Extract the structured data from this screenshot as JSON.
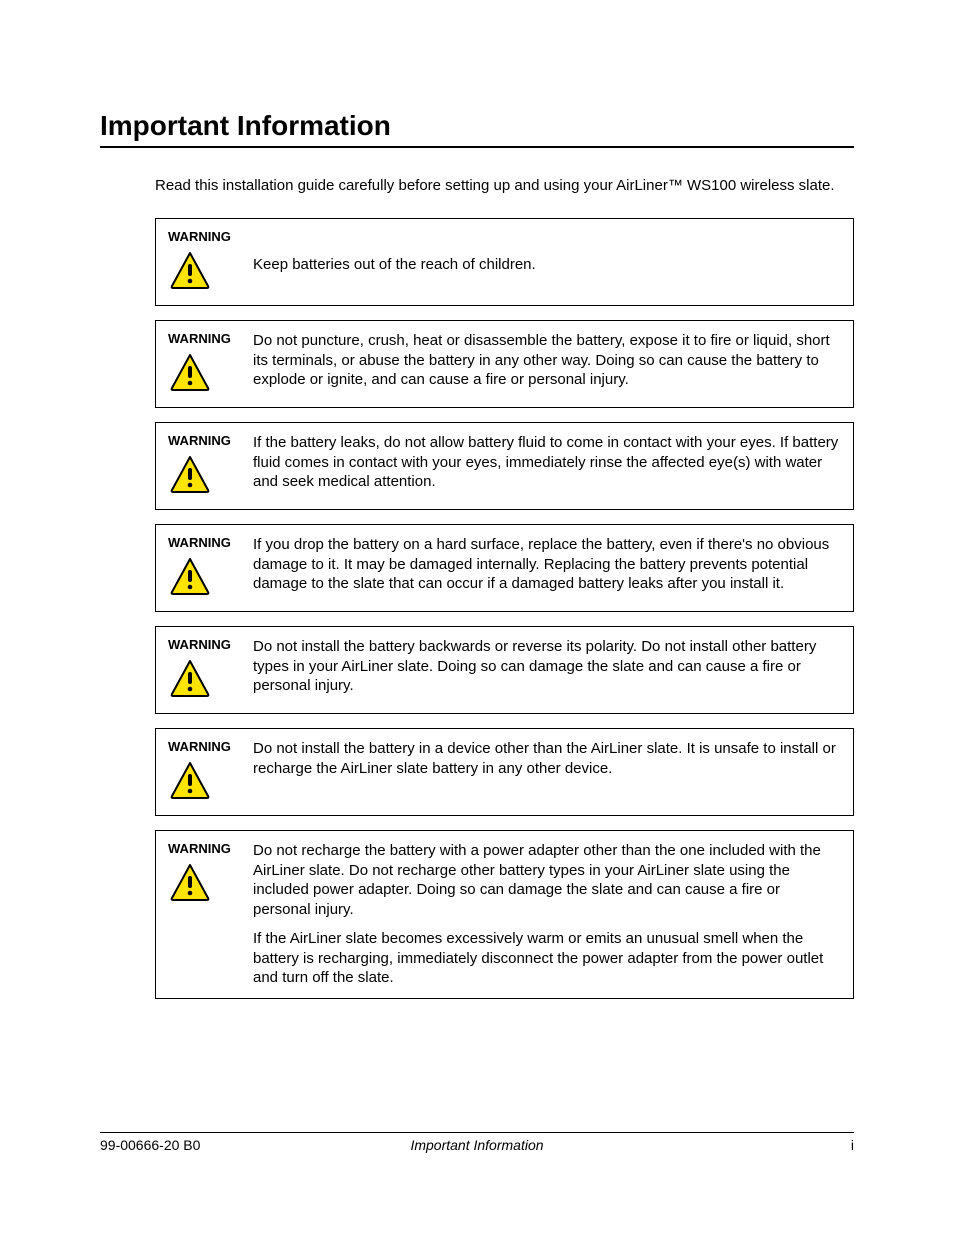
{
  "page": {
    "title": "Important Information",
    "intro": "Read this installation guide carefully before setting up and using your AirLiner™ WS100 wireless slate.",
    "icon": {
      "fill": "#ffe400",
      "stroke": "#000000",
      "width": 44,
      "height": 40
    },
    "warnings": [
      {
        "label": "WARNING",
        "single_line": true,
        "paragraphs": [
          "Keep batteries out of the reach of children."
        ]
      },
      {
        "label": "WARNING",
        "single_line": false,
        "paragraphs": [
          "Do not puncture, crush, heat or disassemble the battery, expose it to fire or liquid, short its terminals, or abuse the battery in any other way. Doing so can cause the battery to explode or ignite, and can cause a fire or personal injury."
        ]
      },
      {
        "label": "WARNING",
        "single_line": false,
        "paragraphs": [
          "If the battery leaks, do not allow battery fluid to come in contact with your eyes. If battery fluid comes in contact with your eyes, immediately rinse the affected eye(s) with water and seek medical attention."
        ]
      },
      {
        "label": "WARNING",
        "single_line": false,
        "paragraphs": [
          "If you drop the battery on a hard surface, replace the battery, even if there's no obvious damage to it. It may be damaged internally. Replacing the battery prevents potential damage to the slate that can occur if a damaged battery leaks after you install it."
        ]
      },
      {
        "label": "WARNING",
        "single_line": false,
        "paragraphs": [
          "Do not install the battery backwards or reverse its polarity. Do not install other battery types in your AirLiner slate. Doing so can damage the slate and can cause a fire or personal injury."
        ]
      },
      {
        "label": "WARNING",
        "single_line": false,
        "paragraphs": [
          "Do not install the battery in a device other than the AirLiner slate. It is unsafe to install or recharge the AirLiner slate battery in any other device."
        ]
      },
      {
        "label": "WARNING",
        "single_line": false,
        "paragraphs": [
          "Do not recharge the battery with a power adapter other than the one included with the AirLiner slate. Do not recharge other battery types in your AirLiner slate using the included power adapter. Doing so can damage the slate and can cause a fire or personal injury.",
          "If the AirLiner slate becomes excessively warm or emits an unusual smell when the battery is recharging, immediately disconnect the power adapter from the power outlet and turn off the slate."
        ]
      }
    ],
    "footer": {
      "left": "99-00666-20 B0",
      "center": "Important Information",
      "right": "i"
    }
  }
}
